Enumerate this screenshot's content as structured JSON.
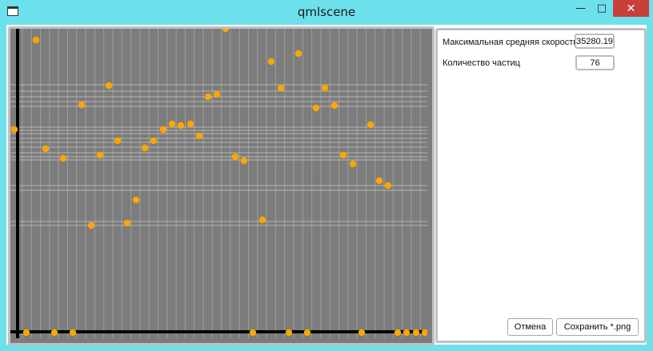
{
  "window": {
    "title": "qmlscene",
    "minimize_glyph": "—",
    "maximize_glyph": "□",
    "close_glyph": "✕"
  },
  "panel": {
    "max_speed_label": "Максимальная средняя скорость",
    "max_speed_value": "35280.19",
    "particle_count_label": "Количество частиц",
    "particle_count_value": "76",
    "cancel_button": "Отмена",
    "save_button": "Сохранить *.png"
  },
  "colors": {
    "particle": "#ffa500",
    "plot_background": "#7c7c7c",
    "grid_line": "#c8c8c8",
    "axis": "#000000",
    "close_button": "#c9403a",
    "window_frame": "#6de1eb"
  }
}
